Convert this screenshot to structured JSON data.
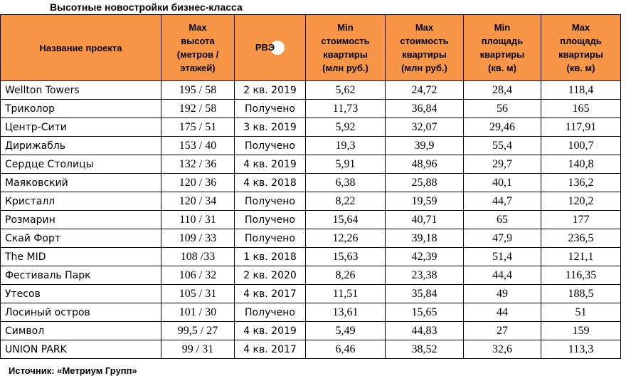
{
  "title": "Высотные новостройки бизнес-класса",
  "table": {
    "headers": [
      "Название проекта",
      "Max\nвысота\n(метров /\nэтажей)",
      "РВЭ",
      "Min\nстоимость\nквартиры\n(млн руб.)",
      "Max\nстоимость\nквартиры\n(млн руб.)",
      "Min\nплощадь\nквартиры\n(кв. м)",
      "Max\nплощадь\nквартиры\n(кв. м)"
    ],
    "rows": [
      [
        "Wellton Towers",
        "195 / 58",
        "2 кв. 2019",
        "5,62",
        "24,72",
        "28,4",
        "118,4"
      ],
      [
        "Триколор",
        "192 / 58",
        "Получено",
        "11,73",
        "36,84",
        "56",
        "165"
      ],
      [
        "Центр-Сити",
        "175 / 51",
        "3 кв. 2019",
        "5,92",
        "32,07",
        "29,46",
        "117,91"
      ],
      [
        "Дирижабль",
        "153 / 40",
        "Получено",
        "19,3",
        "39,9",
        "55,4",
        "100,7"
      ],
      [
        "Сердце Столицы",
        "132 / 36",
        "4 кв. 2019",
        "5,91",
        "48,96",
        "29,7",
        "140,8"
      ],
      [
        "Маяковский",
        "120 / 36",
        "4 кв. 2018",
        "6,38",
        "25,88",
        "40,1",
        "136,2"
      ],
      [
        "Кристалл",
        "120 / 34",
        "Получено",
        "8,22",
        "19,59",
        "44,7",
        "120,2"
      ],
      [
        "Розмарин",
        "110 / 31",
        "Получено",
        "15,64",
        "40,71",
        "65",
        "177"
      ],
      [
        "Скай Форт",
        "109 / 33",
        "Получено",
        "12,26",
        "39,18",
        "47,9",
        "236,5"
      ],
      [
        "The MID",
        "108 /33",
        "1 кв. 2018",
        "15,63",
        "42,39",
        "51,4",
        "121,1"
      ],
      [
        "Фестиваль Парк",
        "106 / 32",
        "2 кв. 2020",
        "8,26",
        "23,38",
        "44,4",
        "116,35"
      ],
      [
        "Утесов",
        "105 / 31",
        "4 кв. 2017",
        "11,51",
        "35,84",
        "49",
        "188,5"
      ],
      [
        "Лосиный остров",
        "101 / 30",
        "Получено",
        "13,61",
        "15,65",
        "44",
        "51"
      ],
      [
        "Символ",
        "99,5 / 27",
        "4 кв. 2019",
        "5,49",
        "44,83",
        "27",
        "159"
      ],
      [
        "UNION PARK",
        "99 / 31",
        "4 кв. 2017",
        "6,46",
        "38,52",
        "32,6",
        "113,3"
      ]
    ]
  },
  "source": "Источник: «Метриум Групп»",
  "colors": {
    "header_bg": "#f79646",
    "border": "#000000"
  }
}
